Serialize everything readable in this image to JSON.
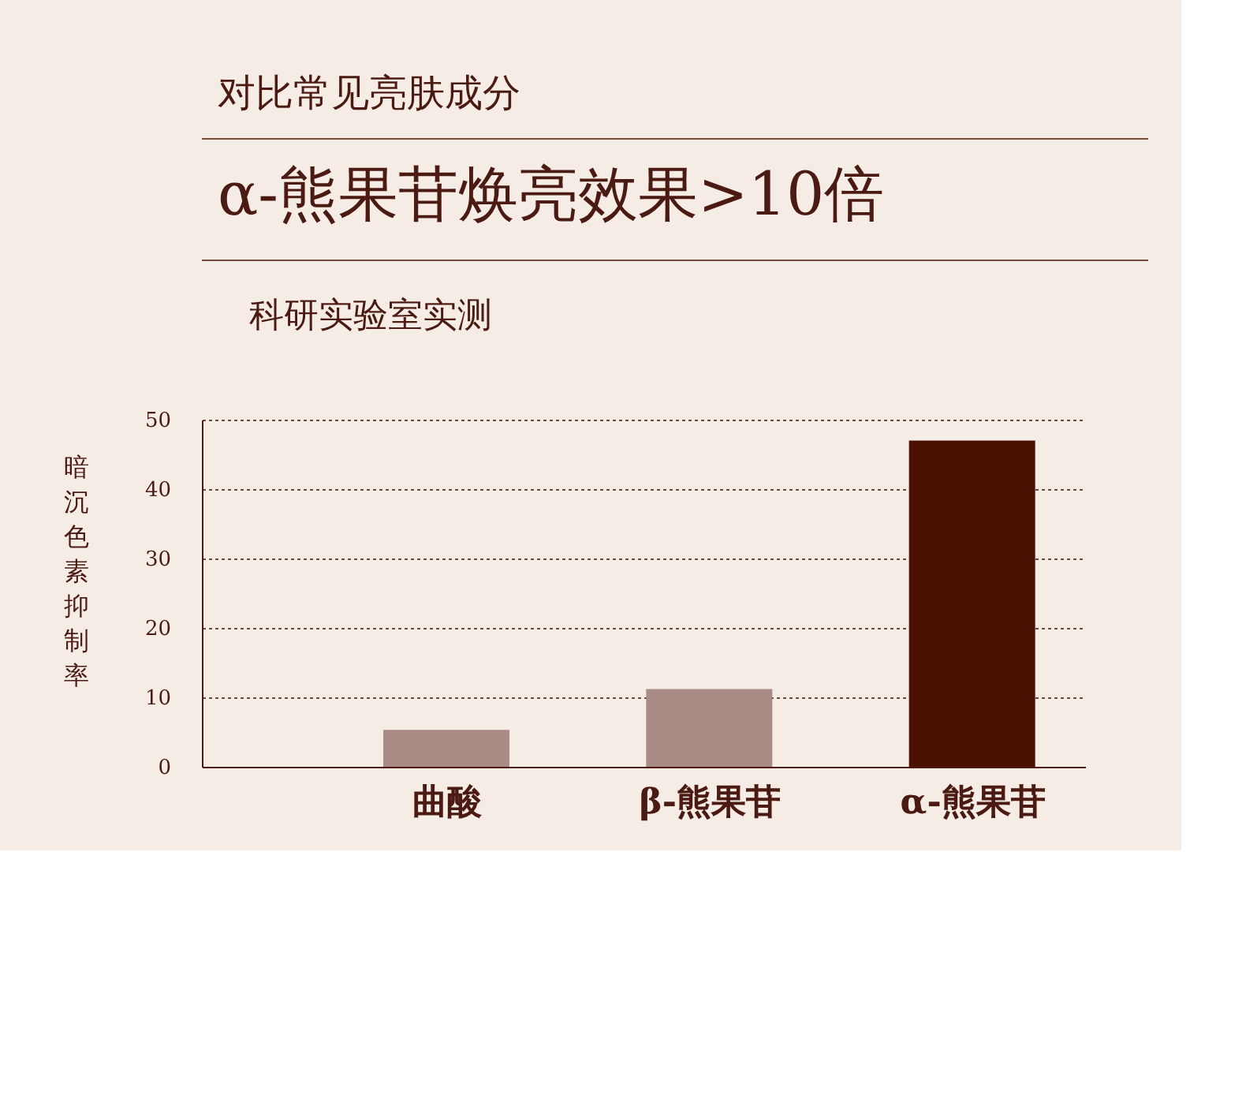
{
  "chart_data": {
    "type": "bar",
    "subtitle": "对比常见亮肤成分",
    "title": "α-熊果苷焕亮效果>10倍",
    "annotations": [
      "科研实验室实测"
    ],
    "ylabel": "暗沉色素抑制率",
    "categories": [
      "曲酸",
      "β-熊果苷",
      "α-熊果苷"
    ],
    "values": [
      5.3,
      11.2,
      47.0
    ],
    "colors": [
      "#a98c85",
      "#a98c85",
      "#4b1203"
    ],
    "ylim": [
      0,
      50
    ],
    "yticks": [
      0,
      10,
      20,
      30,
      40,
      50
    ],
    "grid": "y"
  }
}
